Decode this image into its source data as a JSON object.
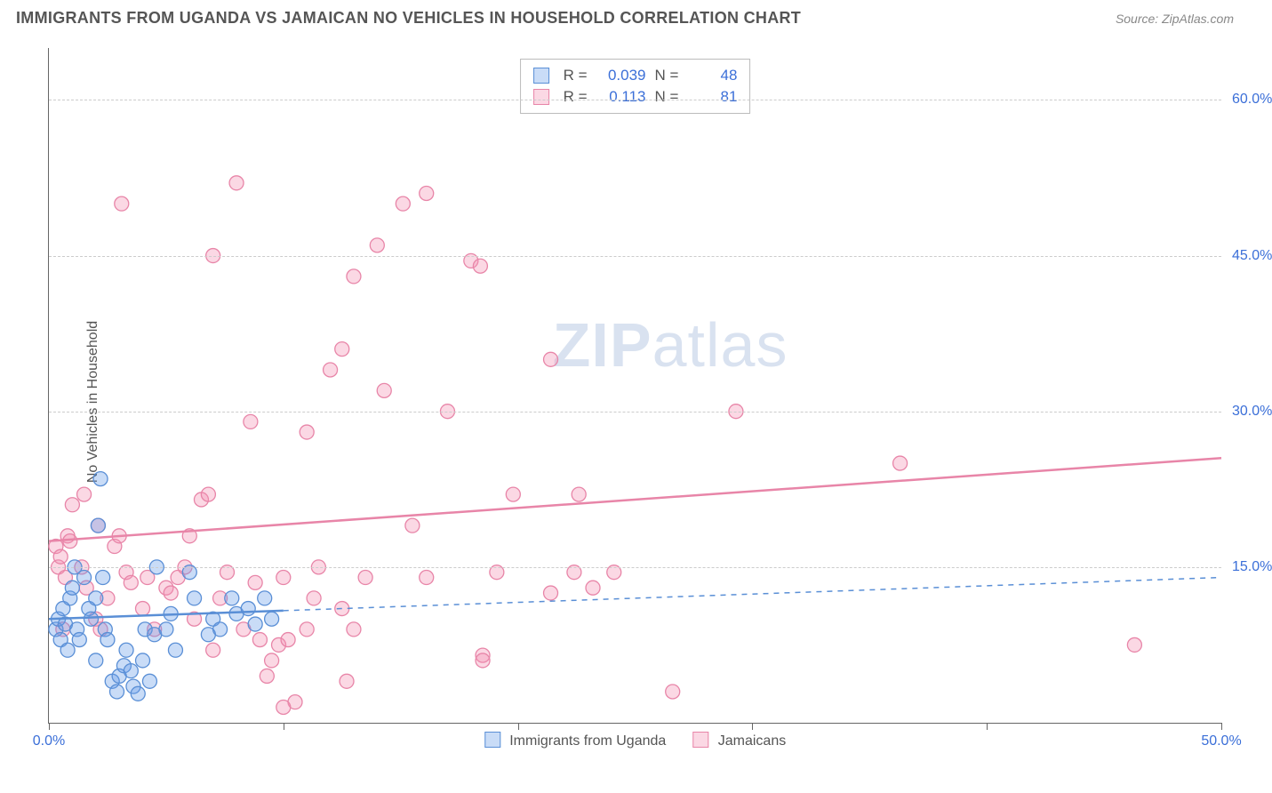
{
  "header": {
    "title": "IMMIGRANTS FROM UGANDA VS JAMAICAN NO VEHICLES IN HOUSEHOLD CORRELATION CHART",
    "source": "Source: ZipAtlas.com"
  },
  "ylabel": "No Vehicles in Household",
  "watermark": {
    "zip": "ZIP",
    "atlas": "atlas"
  },
  "axes": {
    "xlim": [
      0,
      50
    ],
    "ylim": [
      0,
      65
    ],
    "xticks": [
      0,
      10,
      20,
      30,
      40,
      50
    ],
    "xtick_labels": [
      "0.0%",
      "",
      "",
      "",
      "",
      "50.0%"
    ],
    "yticks": [
      15,
      30,
      45,
      60
    ],
    "ytick_labels": [
      "15.0%",
      "30.0%",
      "45.0%",
      "60.0%"
    ]
  },
  "colors": {
    "series_a_fill": "rgba(99,155,233,0.35)",
    "series_a_stroke": "#5a8fd6",
    "series_b_fill": "rgba(244,143,177,0.35)",
    "series_b_stroke": "#e885a8",
    "axis_text": "#3b6fd8",
    "grid": "#cccccc"
  },
  "top_legend": {
    "rows": [
      {
        "series": "a",
        "r_label": "R =",
        "r": "0.039",
        "n_label": "N =",
        "n": "48"
      },
      {
        "series": "b",
        "r_label": "R =",
        "r": "0.113",
        "n_label": "N =",
        "n": "81"
      }
    ]
  },
  "bottom_legend": {
    "items": [
      {
        "series": "a",
        "label": "Immigrants from Uganda"
      },
      {
        "series": "b",
        "label": "Jamaicans"
      }
    ]
  },
  "marker_radius": 8,
  "series_a": {
    "line": {
      "x1": 0,
      "y1": 10,
      "x2": 50,
      "y2": 14,
      "solid_until_x": 10
    },
    "points": [
      [
        0.3,
        9
      ],
      [
        0.4,
        10
      ],
      [
        0.5,
        8
      ],
      [
        0.6,
        11
      ],
      [
        0.7,
        9.5
      ],
      [
        0.8,
        7
      ],
      [
        0.9,
        12
      ],
      [
        1.0,
        13
      ],
      [
        1.1,
        15
      ],
      [
        1.2,
        9
      ],
      [
        1.3,
        8
      ],
      [
        1.5,
        14
      ],
      [
        1.7,
        11
      ],
      [
        1.8,
        10
      ],
      [
        2.0,
        6
      ],
      [
        2.0,
        12
      ],
      [
        2.1,
        19
      ],
      [
        2.2,
        23.5
      ],
      [
        2.3,
        14
      ],
      [
        2.4,
        9
      ],
      [
        2.5,
        8
      ],
      [
        2.7,
        4
      ],
      [
        2.9,
        3
      ],
      [
        3.0,
        4.5
      ],
      [
        3.2,
        5.5
      ],
      [
        3.3,
        7
      ],
      [
        3.5,
        5
      ],
      [
        3.6,
        3.5
      ],
      [
        3.8,
        2.8
      ],
      [
        4.0,
        6
      ],
      [
        4.1,
        9
      ],
      [
        4.3,
        4
      ],
      [
        4.5,
        8.5
      ],
      [
        4.6,
        15
      ],
      [
        5.0,
        9
      ],
      [
        5.2,
        10.5
      ],
      [
        5.4,
        7
      ],
      [
        6.0,
        14.5
      ],
      [
        6.2,
        12
      ],
      [
        6.8,
        8.5
      ],
      [
        7.0,
        10
      ],
      [
        7.3,
        9
      ],
      [
        7.8,
        12
      ],
      [
        8.0,
        10.5
      ],
      [
        8.5,
        11
      ],
      [
        8.8,
        9.5
      ],
      [
        9.2,
        12
      ],
      [
        9.5,
        10
      ]
    ]
  },
  "series_b": {
    "line": {
      "x1": 0,
      "y1": 17.5,
      "x2": 50,
      "y2": 25.5
    },
    "points": [
      [
        0.3,
        17
      ],
      [
        0.4,
        15
      ],
      [
        0.5,
        16
      ],
      [
        0.6,
        9
      ],
      [
        0.7,
        14
      ],
      [
        0.8,
        18
      ],
      [
        0.9,
        17.5
      ],
      [
        1.0,
        21
      ],
      [
        1.5,
        22
      ],
      [
        1.4,
        15
      ],
      [
        1.6,
        13
      ],
      [
        2.0,
        10
      ],
      [
        2.1,
        19
      ],
      [
        2.2,
        9
      ],
      [
        2.5,
        12
      ],
      [
        2.8,
        17
      ],
      [
        3.0,
        18
      ],
      [
        3.1,
        50
      ],
      [
        3.3,
        14.5
      ],
      [
        3.5,
        13.5
      ],
      [
        4.0,
        11
      ],
      [
        4.2,
        14
      ],
      [
        4.5,
        9
      ],
      [
        5.0,
        13
      ],
      [
        5.2,
        12.5
      ],
      [
        5.5,
        14
      ],
      [
        5.8,
        15
      ],
      [
        6.0,
        18
      ],
      [
        6.2,
        10
      ],
      [
        6.5,
        21.5
      ],
      [
        6.8,
        22
      ],
      [
        7.0,
        45
      ],
      [
        7.0,
        7
      ],
      [
        7.3,
        12
      ],
      [
        7.6,
        14.5
      ],
      [
        8.0,
        52
      ],
      [
        8.3,
        9
      ],
      [
        8.6,
        29
      ],
      [
        8.8,
        13.5
      ],
      [
        9.0,
        8
      ],
      [
        9.3,
        4.5
      ],
      [
        9.5,
        6
      ],
      [
        9.8,
        7.5
      ],
      [
        10.0,
        14
      ],
      [
        10.2,
        8
      ],
      [
        10.5,
        2
      ],
      [
        11.0,
        28
      ],
      [
        11.0,
        9
      ],
      [
        11.5,
        15
      ],
      [
        12.0,
        34
      ],
      [
        12.5,
        36
      ],
      [
        12.5,
        11
      ],
      [
        13.0,
        43
      ],
      [
        13.0,
        9
      ],
      [
        13.5,
        14
      ],
      [
        14.0,
        46
      ],
      [
        14.3,
        32
      ],
      [
        15.1,
        50
      ],
      [
        15.5,
        19
      ],
      [
        16.1,
        51
      ],
      [
        16.1,
        14
      ],
      [
        17.0,
        30
      ],
      [
        18.0,
        44.5
      ],
      [
        18.4,
        44
      ],
      [
        18.5,
        6.5
      ],
      [
        18.5,
        6
      ],
      [
        19.1,
        14.5
      ],
      [
        19.8,
        22
      ],
      [
        21.4,
        35
      ],
      [
        21.4,
        12.5
      ],
      [
        22.4,
        14.5
      ],
      [
        22.6,
        22
      ],
      [
        23.2,
        13
      ],
      [
        24.1,
        14.5
      ],
      [
        26.6,
        3
      ],
      [
        29.3,
        30
      ],
      [
        36.3,
        25
      ],
      [
        46.3,
        7.5
      ],
      [
        11.3,
        12
      ],
      [
        12.7,
        4
      ],
      [
        10.0,
        1.5
      ]
    ]
  }
}
